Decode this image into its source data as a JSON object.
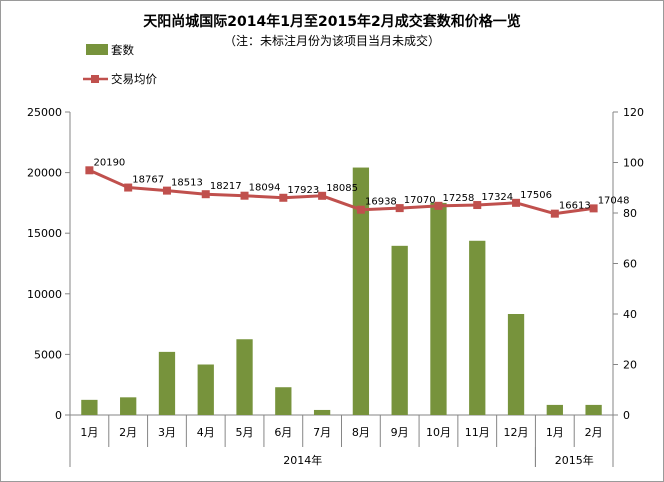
{
  "chart_data": {
    "type": "bar+line",
    "title": "天阳尚城国际2014年1月至2015年2月成交套数和价格一览",
    "subtitle": "（注：未标注月份为该项目当月未成交）",
    "categories": [
      "1月",
      "2月",
      "3月",
      "4月",
      "5月",
      "6月",
      "7月",
      "8月",
      "9月",
      "10月",
      "11月",
      "12月",
      "1月",
      "2月"
    ],
    "category_groups": [
      {
        "label": "2014年",
        "start": 0,
        "end": 11
      },
      {
        "label": "2015年",
        "start": 12,
        "end": 13
      }
    ],
    "series": [
      {
        "name": "套数",
        "type": "bar",
        "axis": "right",
        "color": "#77933c",
        "values": [
          6,
          7,
          25,
          20,
          30,
          11,
          2,
          98,
          67,
          84,
          69,
          40,
          4,
          4
        ]
      },
      {
        "name": "交易均价",
        "type": "line",
        "axis": "left",
        "color": "#c0504d",
        "values": [
          20190,
          18767,
          18513,
          18217,
          18094,
          17923,
          18085,
          16938,
          17070,
          17258,
          17324,
          17506,
          16613,
          17048
        ],
        "labels": [
          "20190",
          "18767",
          "18513",
          "18217",
          "18094",
          "17923",
          "18085",
          "16938",
          "17070",
          "17258",
          "17324",
          "17506",
          "16613",
          "17048"
        ]
      }
    ],
    "y_left": {
      "min": 0,
      "max": 25000,
      "step": 5000,
      "ticks": [
        "0",
        "5000",
        "10000",
        "15000",
        "20000",
        "25000"
      ]
    },
    "y_right": {
      "min": 0,
      "max": 120,
      "step": 20,
      "ticks": [
        "0",
        "20",
        "40",
        "60",
        "80",
        "100",
        "120"
      ]
    },
    "grid": false,
    "legend_position": "top-left",
    "colors": {
      "bar": "#77933c",
      "line": "#c0504d",
      "axis": "#868686"
    }
  }
}
